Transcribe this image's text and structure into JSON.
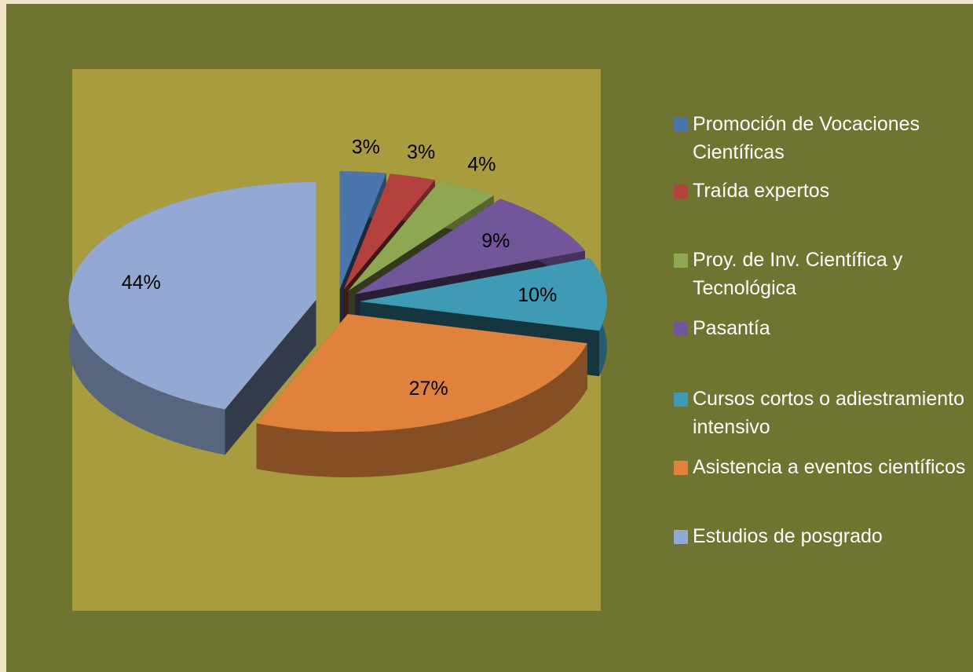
{
  "chart_data": {
    "type": "pie",
    "categories": [
      "Promoción de Vocaciones Científicas",
      "Traída expertos",
      "Proy. de Inv. Científica y Tecnológica",
      "Pasantía",
      "Cursos cortos o adiestramiento intensivo",
      "Asistencia a eventos científicos",
      "Estudios de posgrado"
    ],
    "values": [
      3,
      3,
      4,
      9,
      10,
      27,
      44
    ],
    "value_labels": [
      "3%",
      "3%",
      "4%",
      "9%",
      "10%",
      "27%",
      "44%"
    ],
    "colors": [
      "#4a76ad",
      "#b5413e",
      "#8fa653",
      "#72569a",
      "#3f9ab5",
      "#e0823c",
      "#93a9d3"
    ],
    "legend": "right"
  }
}
